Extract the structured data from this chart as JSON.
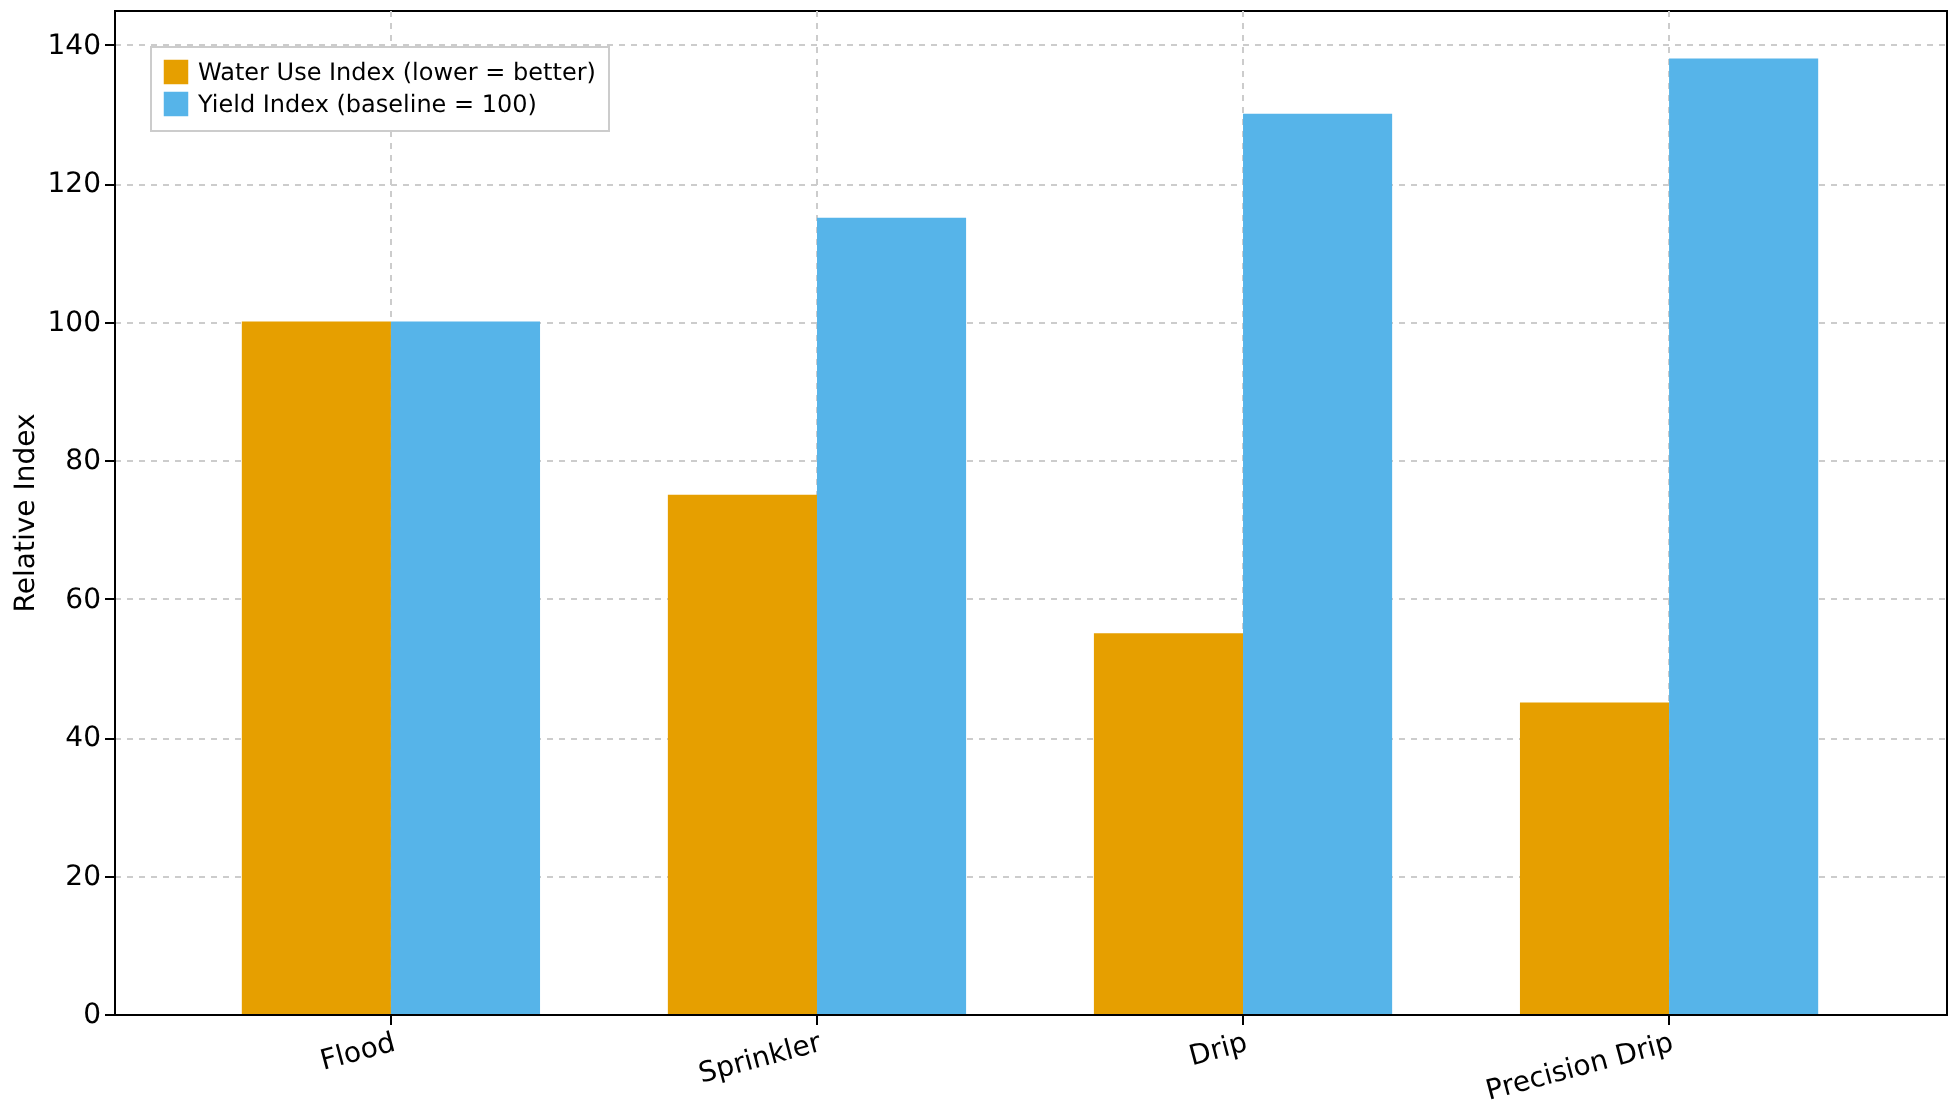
{
  "chart_data": {
    "type": "bar",
    "ylabel": "Relative Index",
    "categories": [
      "Flood",
      "Sprinkler",
      "Drip",
      "Precision Drip"
    ],
    "series": [
      {
        "name": "Water Use Index (lower = better)",
        "color": "#e69f00",
        "values": [
          100,
          75,
          55,
          45
        ]
      },
      {
        "name": "Yield Index (baseline = 100)",
        "color": "#56b4e9",
        "values": [
          100,
          115,
          130,
          138
        ]
      }
    ],
    "ylim": [
      0,
      145
    ],
    "yticks": [
      0,
      20,
      40,
      60,
      80,
      100,
      120,
      140
    ],
    "grid": true,
    "legend": "top left"
  }
}
